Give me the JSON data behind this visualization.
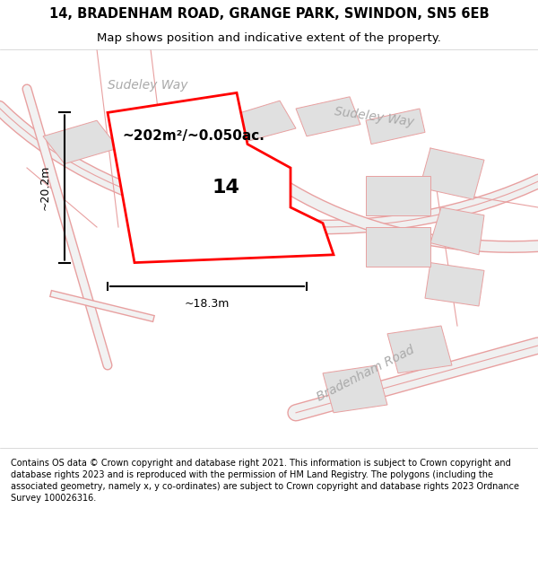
{
  "title_line1": "14, BRADENHAM ROAD, GRANGE PARK, SWINDON, SN5 6EB",
  "title_line2": "Map shows position and indicative extent of the property.",
  "footer_text": "Contains OS data © Crown copyright and database right 2021. This information is subject to Crown copyright and database rights 2023 and is reproduced with the permission of HM Land Registry. The polygons (including the associated geometry, namely x, y co-ordinates) are subject to Crown copyright and database rights 2023 Ordnance Survey 100026316.",
  "area_label": "~202m²/~0.050ac.",
  "label_number": "14",
  "dim_height": "~20.2m",
  "dim_width": "~18.3m",
  "street_label1": "Sudeley Way",
  "street_label2": "Sudeley Way",
  "street_label3": "Bradenham Road",
  "map_bg": "#f8f8f8",
  "title_bg": "#ffffff",
  "footer_bg": "#ffffff",
  "plot_color": "#ff0000",
  "plot_fill": "#ffffff",
  "map_road_color": "#e8a0a0",
  "map_building_color": "#e0e0e0",
  "map_building_edge": "#d0d0d0",
  "road_line_color": "#cccccc"
}
